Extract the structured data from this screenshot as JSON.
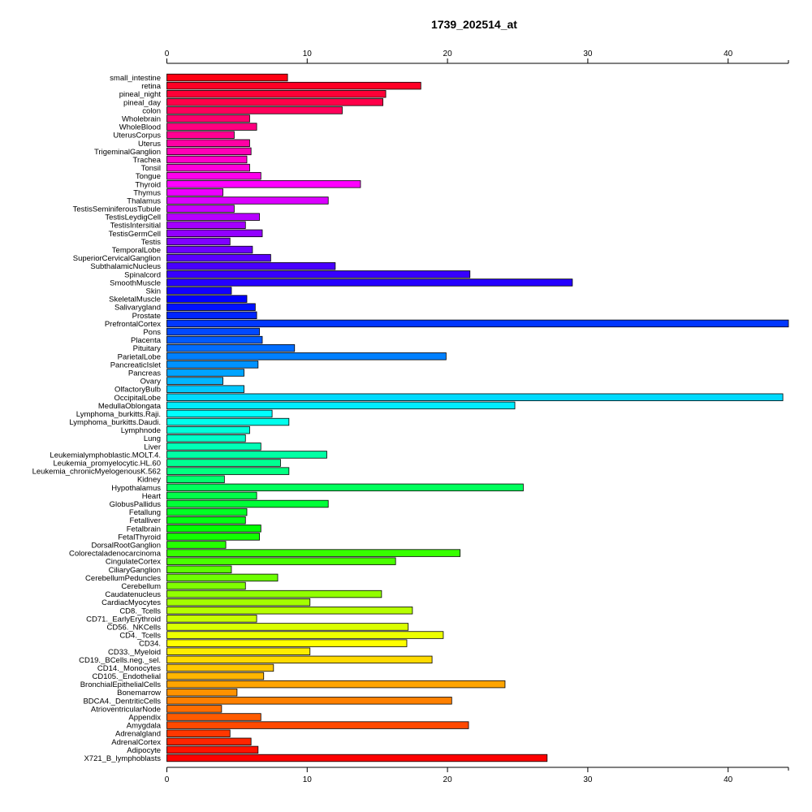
{
  "chart_data": {
    "type": "bar",
    "orientation": "horizontal",
    "title": "1739_202514_at",
    "xlabel": "",
    "ylabel": "",
    "xlim": [
      0,
      44.3
    ],
    "xticks": [
      0,
      10,
      20,
      30,
      40
    ],
    "axes": [
      "top",
      "bottom"
    ],
    "grid": false,
    "legend": "none",
    "color_scheme": "rainbow",
    "categories": [
      "small_intestine",
      "retina",
      "pineal_night",
      "pineal_day",
      "colon",
      "Wholebrain",
      "WholeBlood",
      "UterusCorpus",
      "Uterus",
      "TrigeminalGanglion",
      "Trachea",
      "Tonsil",
      "Tongue",
      "Thyroid",
      "Thymus",
      "Thalamus",
      "TestisSeminiferousTubule",
      "TestisLeydigCell",
      "TestisIntersitial",
      "TestisGermCell",
      "Testis",
      "TemporalLobe",
      "SuperiorCervicalGanglion",
      "SubthalamicNucleus",
      "Spinalcord",
      "SmoothMuscle",
      "Skin",
      "SkeletalMuscle",
      "Salivarygland",
      "Prostate",
      "PrefrontalCortex",
      "Pons",
      "Placenta",
      "Pituitary",
      "ParietalLobe",
      "PancreaticIslet",
      "Pancreas",
      "Ovary",
      "OlfactoryBulb",
      "OccipitalLobe",
      "MedullaOblongata",
      "Lymphoma_burkitts.Raji.",
      "Lymphoma_burkitts.Daudi.",
      "Lymphnode",
      "Lung",
      "Liver",
      "Leukemialymphoblastic.MOLT.4.",
      "Leukemia_promyelocytic.HL.60",
      "Leukemia_chronicMyelogenousK.562",
      "Kidney",
      "Hypothalamus",
      "Heart",
      "GlobusPallidus",
      "Fetallung",
      "Fetalliver",
      "Fetalbrain",
      "FetalThyroid",
      "DorsalRootGanglion",
      "Colorectaladenocarcinoma",
      "CingulateCortex",
      "CiliaryGanglion",
      "CerebellumPeduncles",
      "Cerebellum",
      "Caudatenucleus",
      "CardiacMyocytes",
      "CD8._Tcells",
      "CD71._EarlyErythroid",
      "CD56._NKCells",
      "CD4._Tcells",
      "CD34.",
      "CD33._Myeloid",
      "CD19._BCells.neg._sel.",
      "CD14._Monocytes",
      "CD105._Endothelial",
      "BronchialEpithelialCells",
      "Bonemarrow",
      "BDCA4._DentriticCells",
      "AtrioventricularNode",
      "Appendix",
      "Amygdala",
      "Adrenalgland",
      "AdrenalCortex",
      "Adipocyte",
      "X721_B_lymphoblasts"
    ],
    "values": [
      8.6,
      18.1,
      15.6,
      15.4,
      12.5,
      5.9,
      6.4,
      4.8,
      5.9,
      6.0,
      5.7,
      5.9,
      6.7,
      13.8,
      4.0,
      11.5,
      4.8,
      6.6,
      5.6,
      6.8,
      4.5,
      6.1,
      7.4,
      12.0,
      21.6,
      28.9,
      4.6,
      5.7,
      6.3,
      6.4,
      44.3,
      6.6,
      6.8,
      9.1,
      19.9,
      6.5,
      5.5,
      4.0,
      5.5,
      43.9,
      24.8,
      7.5,
      8.7,
      5.9,
      5.6,
      6.7,
      11.4,
      8.1,
      8.7,
      4.1,
      25.4,
      6.4,
      11.5,
      5.7,
      5.6,
      6.7,
      6.6,
      4.2,
      20.9,
      16.3,
      4.6,
      7.9,
      5.6,
      15.3,
      10.2,
      17.5,
      6.4,
      17.2,
      19.7,
      17.1,
      10.2,
      18.9,
      7.6,
      6.9,
      24.1,
      5.0,
      20.3,
      3.9,
      6.7,
      21.5,
      4.5,
      6.0,
      6.5,
      27.1
    ]
  }
}
